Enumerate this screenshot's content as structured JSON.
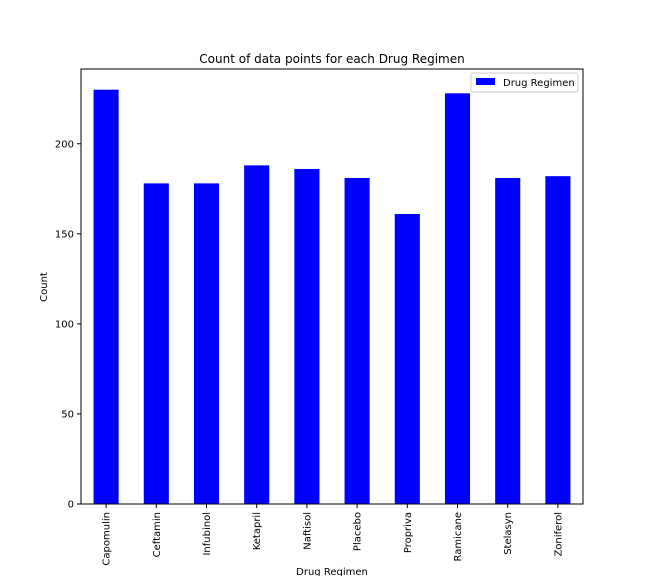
{
  "chart_data": {
    "type": "bar",
    "title": "Count of data points for each Drug Regimen",
    "xlabel": "Drug Regimen",
    "ylabel": "Count",
    "categories": [
      "Capomulin",
      "Ceftamin",
      "Infubinol",
      "Ketapril",
      "Naftisol",
      "Placebo",
      "Propriva",
      "Ramicane",
      "Stelasyn",
      "Zoniferol"
    ],
    "series": [
      {
        "name": "Drug Regimen",
        "values": [
          230,
          178,
          178,
          188,
          186,
          181,
          161,
          228,
          181,
          182
        ]
      }
    ],
    "yticks": [
      0,
      50,
      100,
      150,
      200
    ],
    "ylim": [
      0,
      241.5
    ],
    "grid": false,
    "legend": "top-right",
    "bar_color": "#0000ff"
  }
}
